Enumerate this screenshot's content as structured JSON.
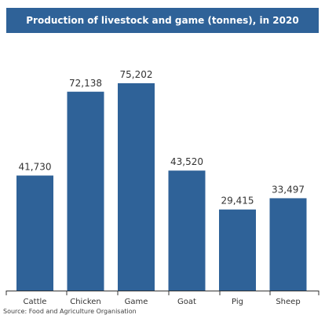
{
  "title": "Production of livestock and game (tonnes), in 2020",
  "source": "Source: Food and Agriculture Organisation",
  "colors": {
    "bar": "#2f6298",
    "title_bg": "#2f6298",
    "axis": "#333333",
    "label": "#333333"
  },
  "chart_data": {
    "type": "bar",
    "title": "Production of livestock and game (tonnes), in 2020",
    "categories": [
      "Cattle",
      "Chicken",
      "Game",
      "Goat",
      "Pig",
      "Sheep"
    ],
    "values": [
      41730,
      72138,
      75202,
      43520,
      29415,
      33497
    ],
    "value_labels": [
      "41,730",
      "72,138",
      "75,202",
      "43,520",
      "29,415",
      "33,497"
    ],
    "xlabel": "",
    "ylabel": "",
    "ylim": [
      0,
      80000
    ],
    "grid": false,
    "legend": "none"
  }
}
